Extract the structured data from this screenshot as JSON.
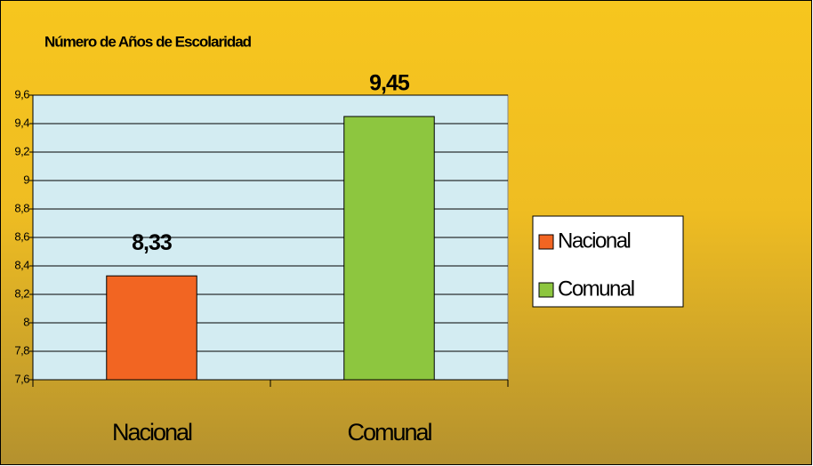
{
  "chart_data": {
    "type": "bar",
    "title": "Número de Años de Escolaridad",
    "categories": [
      "Nacional",
      "Comunal"
    ],
    "values": [
      8.33,
      9.45
    ],
    "value_labels": [
      "8,33",
      "9,45"
    ],
    "colors": [
      "#f26522",
      "#8dc63f"
    ],
    "ylim": [
      7.6,
      9.6
    ],
    "yticks": [
      {
        "value": 7.6,
        "label": "7,6"
      },
      {
        "value": 7.8,
        "label": "7,8"
      },
      8,
      {
        "value": 8.2,
        "label": "8,2"
      },
      {
        "value": 8.4,
        "label": "8,4"
      },
      {
        "value": 8.6,
        "label": "8,6"
      },
      {
        "value": 8.8,
        "label": "8,8"
      },
      9,
      {
        "value": 9.2,
        "label": "9,2"
      },
      {
        "value": 9.4,
        "label": "9,4"
      },
      {
        "value": 9.6,
        "label": "9,6"
      }
    ],
    "grid": true,
    "legend": "right"
  }
}
